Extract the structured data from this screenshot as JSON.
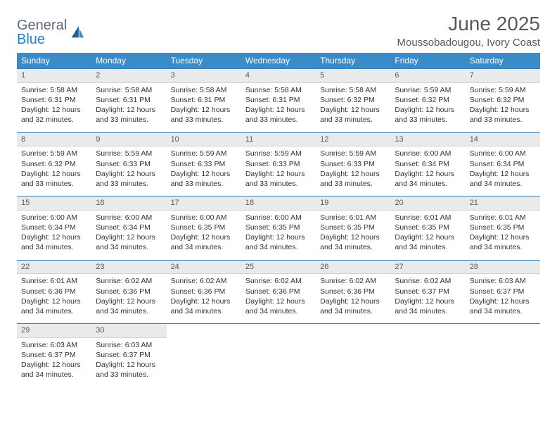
{
  "brand": {
    "part1": "General",
    "part2": "Blue"
  },
  "title": "June 2025",
  "subtitle": "Moussobadougou, Ivory Coast",
  "header_bg": "#3a8cc9",
  "daynum_bg": "#e9eaeb",
  "rule_color": "#3a7db0",
  "weekdays": [
    "Sunday",
    "Monday",
    "Tuesday",
    "Wednesday",
    "Thursday",
    "Friday",
    "Saturday"
  ],
  "weeks": [
    [
      {
        "n": "1",
        "sr": "5:58 AM",
        "ss": "6:31 PM",
        "dl": "12 hours and 32 minutes."
      },
      {
        "n": "2",
        "sr": "5:58 AM",
        "ss": "6:31 PM",
        "dl": "12 hours and 33 minutes."
      },
      {
        "n": "3",
        "sr": "5:58 AM",
        "ss": "6:31 PM",
        "dl": "12 hours and 33 minutes."
      },
      {
        "n": "4",
        "sr": "5:58 AM",
        "ss": "6:31 PM",
        "dl": "12 hours and 33 minutes."
      },
      {
        "n": "5",
        "sr": "5:58 AM",
        "ss": "6:32 PM",
        "dl": "12 hours and 33 minutes."
      },
      {
        "n": "6",
        "sr": "5:59 AM",
        "ss": "6:32 PM",
        "dl": "12 hours and 33 minutes."
      },
      {
        "n": "7",
        "sr": "5:59 AM",
        "ss": "6:32 PM",
        "dl": "12 hours and 33 minutes."
      }
    ],
    [
      {
        "n": "8",
        "sr": "5:59 AM",
        "ss": "6:32 PM",
        "dl": "12 hours and 33 minutes."
      },
      {
        "n": "9",
        "sr": "5:59 AM",
        "ss": "6:33 PM",
        "dl": "12 hours and 33 minutes."
      },
      {
        "n": "10",
        "sr": "5:59 AM",
        "ss": "6:33 PM",
        "dl": "12 hours and 33 minutes."
      },
      {
        "n": "11",
        "sr": "5:59 AM",
        "ss": "6:33 PM",
        "dl": "12 hours and 33 minutes."
      },
      {
        "n": "12",
        "sr": "5:59 AM",
        "ss": "6:33 PM",
        "dl": "12 hours and 33 minutes."
      },
      {
        "n": "13",
        "sr": "6:00 AM",
        "ss": "6:34 PM",
        "dl": "12 hours and 34 minutes."
      },
      {
        "n": "14",
        "sr": "6:00 AM",
        "ss": "6:34 PM",
        "dl": "12 hours and 34 minutes."
      }
    ],
    [
      {
        "n": "15",
        "sr": "6:00 AM",
        "ss": "6:34 PM",
        "dl": "12 hours and 34 minutes."
      },
      {
        "n": "16",
        "sr": "6:00 AM",
        "ss": "6:34 PM",
        "dl": "12 hours and 34 minutes."
      },
      {
        "n": "17",
        "sr": "6:00 AM",
        "ss": "6:35 PM",
        "dl": "12 hours and 34 minutes."
      },
      {
        "n": "18",
        "sr": "6:00 AM",
        "ss": "6:35 PM",
        "dl": "12 hours and 34 minutes."
      },
      {
        "n": "19",
        "sr": "6:01 AM",
        "ss": "6:35 PM",
        "dl": "12 hours and 34 minutes."
      },
      {
        "n": "20",
        "sr": "6:01 AM",
        "ss": "6:35 PM",
        "dl": "12 hours and 34 minutes."
      },
      {
        "n": "21",
        "sr": "6:01 AM",
        "ss": "6:35 PM",
        "dl": "12 hours and 34 minutes."
      }
    ],
    [
      {
        "n": "22",
        "sr": "6:01 AM",
        "ss": "6:36 PM",
        "dl": "12 hours and 34 minutes."
      },
      {
        "n": "23",
        "sr": "6:02 AM",
        "ss": "6:36 PM",
        "dl": "12 hours and 34 minutes."
      },
      {
        "n": "24",
        "sr": "6:02 AM",
        "ss": "6:36 PM",
        "dl": "12 hours and 34 minutes."
      },
      {
        "n": "25",
        "sr": "6:02 AM",
        "ss": "6:36 PM",
        "dl": "12 hours and 34 minutes."
      },
      {
        "n": "26",
        "sr": "6:02 AM",
        "ss": "6:36 PM",
        "dl": "12 hours and 34 minutes."
      },
      {
        "n": "27",
        "sr": "6:02 AM",
        "ss": "6:37 PM",
        "dl": "12 hours and 34 minutes."
      },
      {
        "n": "28",
        "sr": "6:03 AM",
        "ss": "6:37 PM",
        "dl": "12 hours and 34 minutes."
      }
    ],
    [
      {
        "n": "29",
        "sr": "6:03 AM",
        "ss": "6:37 PM",
        "dl": "12 hours and 34 minutes."
      },
      {
        "n": "30",
        "sr": "6:03 AM",
        "ss": "6:37 PM",
        "dl": "12 hours and 33 minutes."
      },
      null,
      null,
      null,
      null,
      null
    ]
  ],
  "labels": {
    "sunrise": "Sunrise:",
    "sunset": "Sunset:",
    "daylight": "Daylight:"
  }
}
